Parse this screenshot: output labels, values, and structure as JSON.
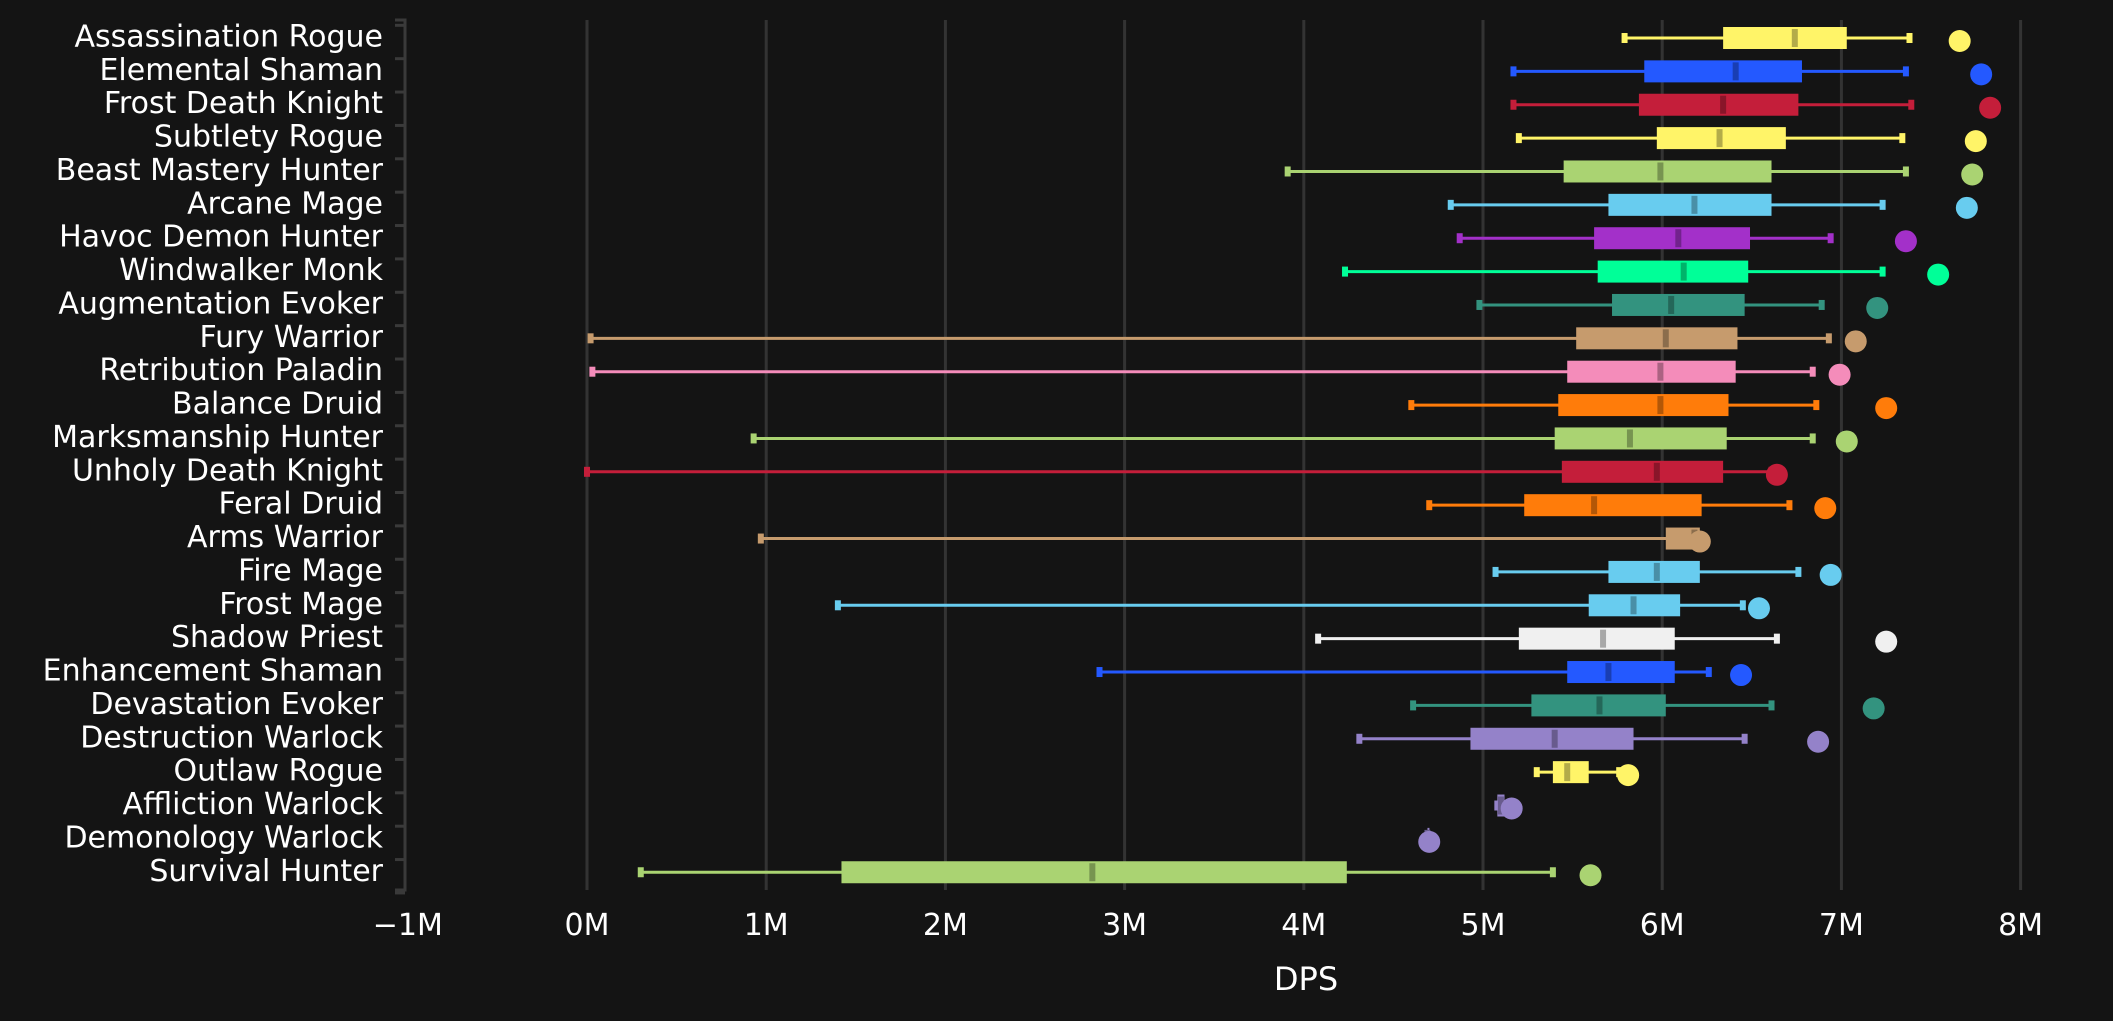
{
  "chart_data": {
    "type": "box",
    "title": "",
    "xlabel": "DPS",
    "ylabel": "",
    "xlim": [
      -1000000,
      8000000
    ],
    "x_ticks": [
      -1000000,
      0,
      1000000,
      2000000,
      3000000,
      4000000,
      5000000,
      6000000,
      7000000,
      8000000
    ],
    "x_tick_labels": [
      "−1M",
      "0M",
      "1M",
      "2M",
      "3M",
      "4M",
      "5M",
      "6M",
      "7M",
      "8M"
    ],
    "grid": "vertical",
    "legend": "none",
    "series": [
      {
        "name": "Assassination Rogue",
        "color": "#FFF468",
        "whisker_low": 5790000,
        "q1": 6340000,
        "median": 6740000,
        "q3": 7030000,
        "whisker_high": 7380000,
        "max": 7660000
      },
      {
        "name": "Elemental Shaman",
        "color": "#2459FF",
        "whisker_low": 5170000,
        "q1": 5900000,
        "median": 6410000,
        "q3": 6780000,
        "whisker_high": 7360000,
        "max": 7780000
      },
      {
        "name": "Frost Death Knight",
        "color": "#C41E3A",
        "whisker_low": 5170000,
        "q1": 5870000,
        "median": 6340000,
        "q3": 6760000,
        "whisker_high": 7390000,
        "max": 7830000
      },
      {
        "name": "Subtlety Rogue",
        "color": "#FFF468",
        "whisker_low": 5200000,
        "q1": 5970000,
        "median": 6320000,
        "q3": 6690000,
        "whisker_high": 7340000,
        "max": 7750000
      },
      {
        "name": "Beast Mastery Hunter",
        "color": "#AAD372",
        "whisker_low": 3910000,
        "q1": 5450000,
        "median": 5990000,
        "q3": 6610000,
        "whisker_high": 7360000,
        "max": 7730000
      },
      {
        "name": "Arcane Mage",
        "color": "#68CCEF",
        "whisker_low": 4820000,
        "q1": 5700000,
        "median": 6180000,
        "q3": 6610000,
        "whisker_high": 7230000,
        "max": 7700000
      },
      {
        "name": "Havoc Demon Hunter",
        "color": "#A330C9",
        "whisker_low": 4870000,
        "q1": 5620000,
        "median": 6090000,
        "q3": 6490000,
        "whisker_high": 6940000,
        "max": 7360000
      },
      {
        "name": "Windwalker Monk",
        "color": "#00FF98",
        "whisker_low": 4230000,
        "q1": 5640000,
        "median": 6120000,
        "q3": 6480000,
        "whisker_high": 7230000,
        "max": 7540000
      },
      {
        "name": "Augmentation Evoker",
        "color": "#33937F",
        "whisker_low": 4980000,
        "q1": 5720000,
        "median": 6050000,
        "q3": 6460000,
        "whisker_high": 6890000,
        "max": 7200000
      },
      {
        "name": "Fury Warrior",
        "color": "#C69B6D",
        "whisker_low": 20000,
        "q1": 5520000,
        "median": 6020000,
        "q3": 6420000,
        "whisker_high": 6930000,
        "max": 7080000
      },
      {
        "name": "Retribution Paladin",
        "color": "#F48CBA",
        "whisker_low": 30000,
        "q1": 5470000,
        "median": 5990000,
        "q3": 6410000,
        "whisker_high": 6840000,
        "max": 6990000
      },
      {
        "name": "Balance Druid",
        "color": "#FF7C0A",
        "whisker_low": 4600000,
        "q1": 5420000,
        "median": 5990000,
        "q3": 6370000,
        "whisker_high": 6860000,
        "max": 7250000
      },
      {
        "name": "Marksmanship Hunter",
        "color": "#AAD372",
        "whisker_low": 930000,
        "q1": 5400000,
        "median": 5820000,
        "q3": 6360000,
        "whisker_high": 6840000,
        "max": 7030000
      },
      {
        "name": "Unholy Death Knight",
        "color": "#C41E3A",
        "whisker_low": 0,
        "q1": 5440000,
        "median": 5970000,
        "q3": 6340000,
        "whisker_high": 6610000,
        "max": 6640000
      },
      {
        "name": "Feral Druid",
        "color": "#FF7C0A",
        "whisker_low": 4700000,
        "q1": 5230000,
        "median": 5620000,
        "q3": 6220000,
        "whisker_high": 6710000,
        "max": 6910000
      },
      {
        "name": "Arms Warrior",
        "color": "#C69B6D",
        "whisker_low": 970000,
        "q1": 6020000,
        "median": 6180000,
        "q3": 6210000,
        "whisker_high": 6210000,
        "max": 6210000
      },
      {
        "name": "Fire Mage",
        "color": "#68CCEF",
        "whisker_low": 5070000,
        "q1": 5700000,
        "median": 5970000,
        "q3": 6210000,
        "whisker_high": 6760000,
        "max": 6940000
      },
      {
        "name": "Frost Mage",
        "color": "#68CCEF",
        "whisker_low": 1400000,
        "q1": 5590000,
        "median": 5840000,
        "q3": 6100000,
        "whisker_high": 6450000,
        "max": 6540000
      },
      {
        "name": "Shadow Priest",
        "color": "#F0F0F0",
        "whisker_low": 4080000,
        "q1": 5200000,
        "median": 5670000,
        "q3": 6070000,
        "whisker_high": 6640000,
        "max": 7250000
      },
      {
        "name": "Enhancement Shaman",
        "color": "#2459FF",
        "whisker_low": 2860000,
        "q1": 5470000,
        "median": 5700000,
        "q3": 6070000,
        "whisker_high": 6260000,
        "max": 6440000
      },
      {
        "name": "Devastation Evoker",
        "color": "#33937F",
        "whisker_low": 4610000,
        "q1": 5270000,
        "median": 5650000,
        "q3": 6020000,
        "whisker_high": 6610000,
        "max": 7180000
      },
      {
        "name": "Destruction Warlock",
        "color": "#9482C9",
        "whisker_low": 4310000,
        "q1": 4930000,
        "median": 5400000,
        "q3": 5840000,
        "whisker_high": 6460000,
        "max": 6870000
      },
      {
        "name": "Outlaw Rogue",
        "color": "#FFF468",
        "whisker_low": 5300000,
        "q1": 5390000,
        "median": 5470000,
        "q3": 5590000,
        "whisker_high": 5760000,
        "max": 5810000
      },
      {
        "name": "Affliction Warlock",
        "color": "#9482C9",
        "whisker_low": 5080000,
        "q1": 5080000,
        "median": 5100000,
        "q3": 5120000,
        "whisker_high": 5120000,
        "max": 5160000
      },
      {
        "name": "Demonology Warlock",
        "color": "#9482C9",
        "whisker_low": 4690000,
        "q1": 4690000,
        "median": 4690000,
        "q3": 4700000,
        "whisker_high": 4700000,
        "max": 4700000
      },
      {
        "name": "Survival Hunter",
        "color": "#AAD372",
        "whisker_low": 300000,
        "q1": 1420000,
        "median": 2820000,
        "q3": 4240000,
        "whisker_high": 5390000,
        "max": 5600000
      }
    ]
  }
}
